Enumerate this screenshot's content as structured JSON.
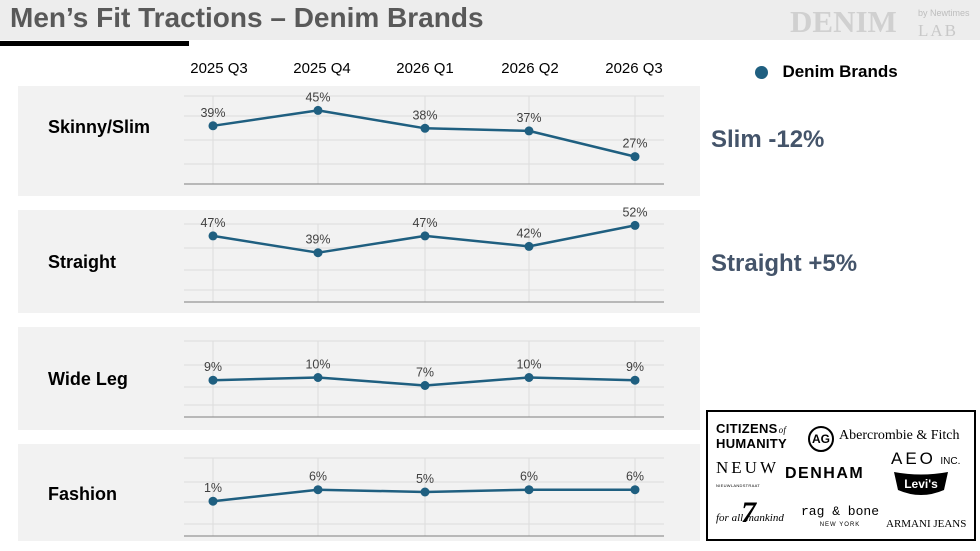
{
  "title": "Men’s Fit Tractions – Denim Brands",
  "brand_logo": {
    "main": "DENIM",
    "sub": "LAB",
    "tag": "by Newtimes"
  },
  "legend": {
    "label": "Denim Brands",
    "color": "#1f5f80"
  },
  "callouts": {
    "slim": "Slim -12%",
    "straight": "Straight +5%"
  },
  "logos": {
    "citizens_1": "CITIZENS",
    "citizens_of": "of",
    "citizens_2": "HUMANITY",
    "ag": "AG",
    "abercrombie": "Abercrombie & Fitch",
    "neuw": "NEUW",
    "neuw_sub": "NIEUWLANDSTRAAT",
    "denham": "DENHAM",
    "aeo": "AEO",
    "aeo_inc": "INC.",
    "levis": "Levi's",
    "seven": "7",
    "seven_text": "for all mankind",
    "ragbone": "rag & bone",
    "ragbone_sub": "NEW YORK",
    "armani": "ARMANI JEANS"
  },
  "chart_data": {
    "type": "line",
    "categories": [
      "2025 Q3",
      "2025 Q4",
      "2026 Q1",
      "2026 Q2",
      "2026 Q3"
    ],
    "series_name": "Denim Brands",
    "line_color": "#1f5f80",
    "panels": [
      {
        "label": "Skinny/Slim",
        "values": [
          39,
          45,
          38,
          37,
          27
        ],
        "value_labels": [
          "39%",
          "45%",
          "38%",
          "37%",
          "27%"
        ]
      },
      {
        "label": "Straight",
        "values": [
          47,
          39,
          47,
          42,
          52
        ],
        "value_labels": [
          "47%",
          "39%",
          "47%",
          "42%",
          "52%"
        ]
      },
      {
        "label": "Wide Leg",
        "values": [
          9,
          10,
          7,
          10,
          9
        ],
        "value_labels": [
          "9%",
          "10%",
          "7%",
          "10%",
          "9%"
        ]
      },
      {
        "label": "Fashion",
        "values": [
          1,
          6,
          5,
          6,
          6
        ],
        "value_labels": [
          "1%",
          "6%",
          "5%",
          "6%",
          "6%"
        ]
      }
    ]
  }
}
